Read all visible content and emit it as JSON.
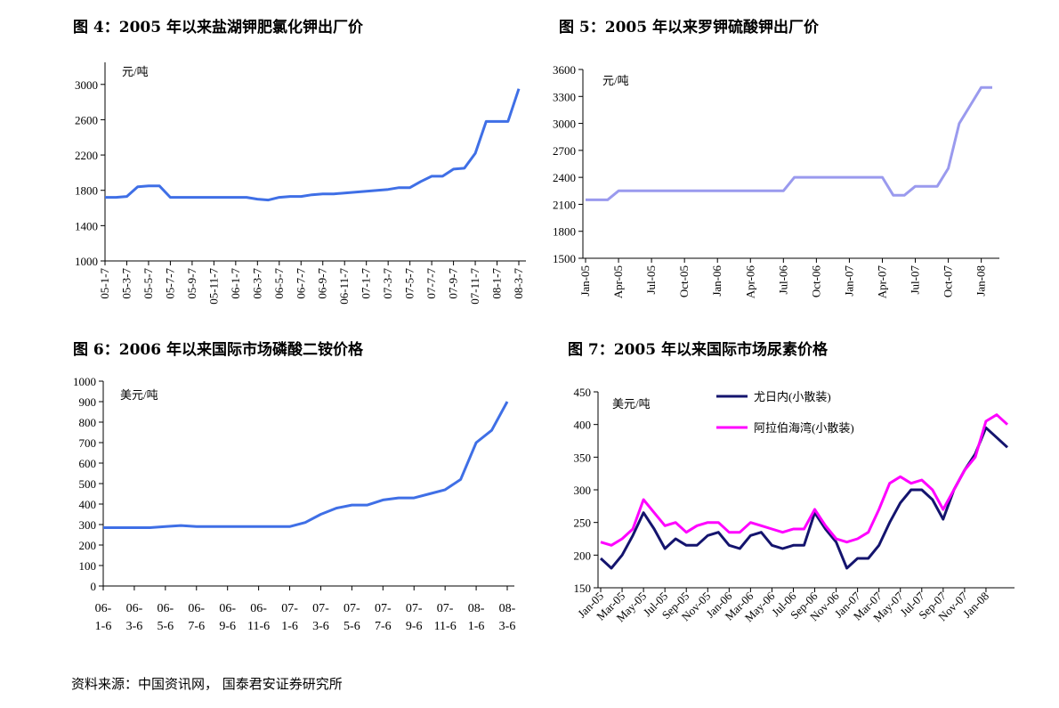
{
  "chart_data": [
    {
      "type": "line",
      "title": "图 4：2005 年以来盐湖钾肥氯化钾出厂价",
      "unit": "元/吨",
      "categories": [
        "05-1-7",
        null,
        "05-3-7",
        null,
        "05-5-7",
        null,
        "05-7-7",
        null,
        "05-9-7",
        null,
        "05-11-7",
        null,
        "06-1-7",
        null,
        "06-3-7",
        null,
        "06-5-7",
        null,
        "06-7-7",
        null,
        "06-9-7",
        null,
        "06-11-7",
        null,
        "07-1-7",
        null,
        "07-3-7",
        null,
        "07-5-7",
        null,
        "07-7-7",
        null,
        "07-9-7",
        null,
        "07-11-7",
        null,
        "08-1-7",
        null,
        "08-3-7"
      ],
      "values": [
        1720,
        1720,
        1730,
        1840,
        1850,
        1850,
        1720,
        1720,
        1720,
        1720,
        1720,
        1720,
        1720,
        1720,
        1700,
        1690,
        1720,
        1730,
        1730,
        1750,
        1760,
        1760,
        1770,
        1780,
        1790,
        1800,
        1810,
        1830,
        1830,
        1900,
        1960,
        1960,
        2040,
        2050,
        2220,
        2580,
        2580,
        2580,
        2950
      ],
      "color": "#3f6fe6",
      "ylim": [
        1000,
        3250
      ],
      "yticks": [
        1000,
        1400,
        1800,
        2200,
        2600,
        3000
      ]
    },
    {
      "type": "line",
      "title": "图 5：2005 年以来罗钾硫酸钾出厂价",
      "unit": "元/吨",
      "categories": [
        "Jan-05",
        null,
        null,
        "Apr-05",
        null,
        null,
        "Jul-05",
        null,
        null,
        "Oct-05",
        null,
        null,
        "Jan-06",
        null,
        null,
        "Apr-06",
        null,
        null,
        "Jul-06",
        null,
        null,
        "Oct-06",
        null,
        null,
        "Jan-07",
        null,
        null,
        "Apr-07",
        null,
        null,
        "Jul-07",
        null,
        null,
        "Oct-07",
        null,
        null,
        "Jan-08",
        null
      ],
      "values": [
        2150,
        2150,
        2150,
        2250,
        2250,
        2250,
        2250,
        2250,
        2250,
        2250,
        2250,
        2250,
        2250,
        2250,
        2250,
        2250,
        2250,
        2250,
        2250,
        2400,
        2400,
        2400,
        2400,
        2400,
        2400,
        2400,
        2400,
        2400,
        2200,
        2200,
        2300,
        2300,
        2300,
        2500,
        3000,
        3200,
        3400,
        3400
      ],
      "color": "#9a9aee",
      "ylim": [
        1500,
        3600
      ],
      "yticks": [
        1500,
        1800,
        2100,
        2400,
        2700,
        3000,
        3300,
        3600
      ]
    },
    {
      "type": "line",
      "title": "图 6：2006 年以来国际市场磷酸二铵价格",
      "unit": "美元/吨",
      "categories": [
        "06-1-6",
        null,
        "06-3-6",
        null,
        "06-5-6",
        null,
        "06-7-6",
        null,
        "06-9-6",
        null,
        "06-11-6",
        null,
        "07-1-6",
        null,
        "07-3-6",
        null,
        "07-5-6",
        null,
        "07-7-6",
        null,
        "07-9-6",
        null,
        "07-11-6",
        null,
        "08-1-6",
        null,
        "08-3-6"
      ],
      "values": [
        285,
        285,
        285,
        285,
        290,
        295,
        290,
        290,
        290,
        290,
        290,
        290,
        290,
        310,
        350,
        380,
        395,
        395,
        420,
        430,
        430,
        450,
        470,
        520,
        700,
        760,
        900
      ],
      "color": "#3f6fe6",
      "ylim": [
        0,
        1000
      ],
      "yticks": [
        0,
        100,
        200,
        300,
        400,
        500,
        600,
        700,
        800,
        900,
        1000
      ]
    },
    {
      "type": "line",
      "title": "图 7：2005 年以来国际市场尿素价格",
      "unit": "美元/吨",
      "categories": [
        "Jan-05",
        null,
        "Mar-05",
        null,
        "May-05",
        null,
        "Jul-05",
        null,
        "Sep-05",
        null,
        "Nov-05",
        null,
        "Jan-06",
        null,
        "Mar-06",
        null,
        "May-06",
        null,
        "Jul-06",
        null,
        "Sep-06",
        null,
        "Nov-06",
        null,
        "Jan-07",
        null,
        "Mar-07",
        null,
        "May-07",
        null,
        "Jul-07",
        null,
        "Sep-07",
        null,
        "Nov-07",
        null,
        "Jan-08",
        null,
        null
      ],
      "series": [
        {
          "name": "尤日内(小散装)",
          "color": "#14146e",
          "values": [
            195,
            180,
            200,
            230,
            265,
            240,
            210,
            225,
            215,
            215,
            230,
            235,
            215,
            210,
            230,
            235,
            215,
            210,
            215,
            215,
            265,
            240,
            220,
            180,
            195,
            195,
            215,
            250,
            280,
            300,
            300,
            285,
            255,
            300,
            330,
            355,
            395,
            380,
            365
          ]
        },
        {
          "name": "阿拉伯海湾(小散装)",
          "color": "#ff00ff",
          "values": [
            220,
            215,
            225,
            240,
            285,
            265,
            245,
            250,
            235,
            245,
            250,
            250,
            235,
            235,
            250,
            245,
            240,
            235,
            240,
            240,
            270,
            245,
            225,
            220,
            225,
            235,
            270,
            310,
            320,
            310,
            315,
            300,
            270,
            300,
            330,
            350,
            405,
            415,
            400
          ]
        }
      ],
      "ylim": [
        150,
        450
      ],
      "yticks": [
        150,
        200,
        250,
        300,
        350,
        400,
        450
      ]
    }
  ],
  "source": "资料来源：中国资讯网， 国泰君安证券研究所"
}
